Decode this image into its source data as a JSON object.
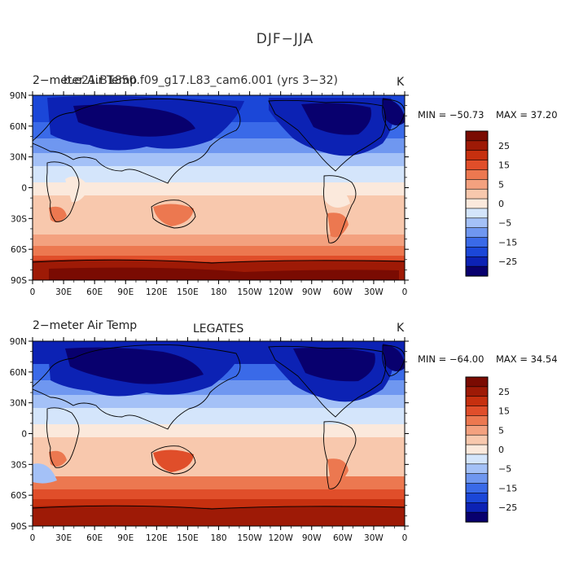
{
  "figure": {
    "title": "DJF−JJA"
  },
  "panels": [
    {
      "left_title_a": "2−meter Air Temp",
      "left_title_b": "b.e21.B1850.f09_g17.L83_cam6.001 (yrs 3−32)",
      "center_title": "",
      "units": "K",
      "min_label": "MIN = −50.73",
      "max_label": "MAX =  37.20",
      "colorbar_ticks": [
        "25",
        "15",
        "5",
        "0",
        "−5",
        "−15",
        "−25"
      ]
    },
    {
      "left_title_a": "2−meter Air Temp",
      "left_title_b": "",
      "center_title": "LEGATES",
      "units": "K",
      "min_label": "MIN = −64.00",
      "max_label": "MAX =  34.54",
      "colorbar_ticks": [
        "25",
        "15",
        "5",
        "0",
        "−5",
        "−15",
        "−25"
      ]
    }
  ],
  "axes": {
    "lat_labels": [
      "90N",
      "60N",
      "30N",
      "0",
      "30S",
      "60S",
      "90S"
    ],
    "lon_labels": [
      "0",
      "30E",
      "60E",
      "90E",
      "120E",
      "150E",
      "180",
      "150W",
      "120W",
      "90W",
      "60W",
      "30W",
      "0"
    ]
  },
  "colors": {
    "levels": [
      "#08006e",
      "#0c22b4",
      "#1b47d8",
      "#3a6ae8",
      "#6f97f0",
      "#a4c1f7",
      "#d4e5fb",
      "#fbe9dc",
      "#f8c8ad",
      "#f3a17f",
      "#ec7850",
      "#e04e2a",
      "#c6300f",
      "#9e1a06",
      "#7a0b02"
    ],
    "coast": "#000000"
  },
  "chart_data": [
    {
      "type": "heatmap",
      "title": "DJF−JJA",
      "xlabel": "",
      "ylabel": "",
      "units": "K",
      "xlim": [
        0,
        360
      ],
      "ylim": [
        -90,
        90
      ],
      "min": -50.73,
      "max": 37.2,
      "colorbar_ticks": [
        25,
        15,
        5,
        0,
        -5,
        -15,
        -25
      ],
      "source": "b.e21.B1850.f09_g17.L83_cam6.001 (yrs 3−32)"
    },
    {
      "type": "heatmap",
      "title": "LEGATES",
      "xlabel": "",
      "ylabel": "",
      "units": "K",
      "xlim": [
        0,
        360
      ],
      "ylim": [
        -90,
        90
      ],
      "min": -64.0,
      "max": 34.54,
      "colorbar_ticks": [
        25,
        15,
        5,
        0,
        -5,
        -15,
        -25
      ]
    }
  ]
}
